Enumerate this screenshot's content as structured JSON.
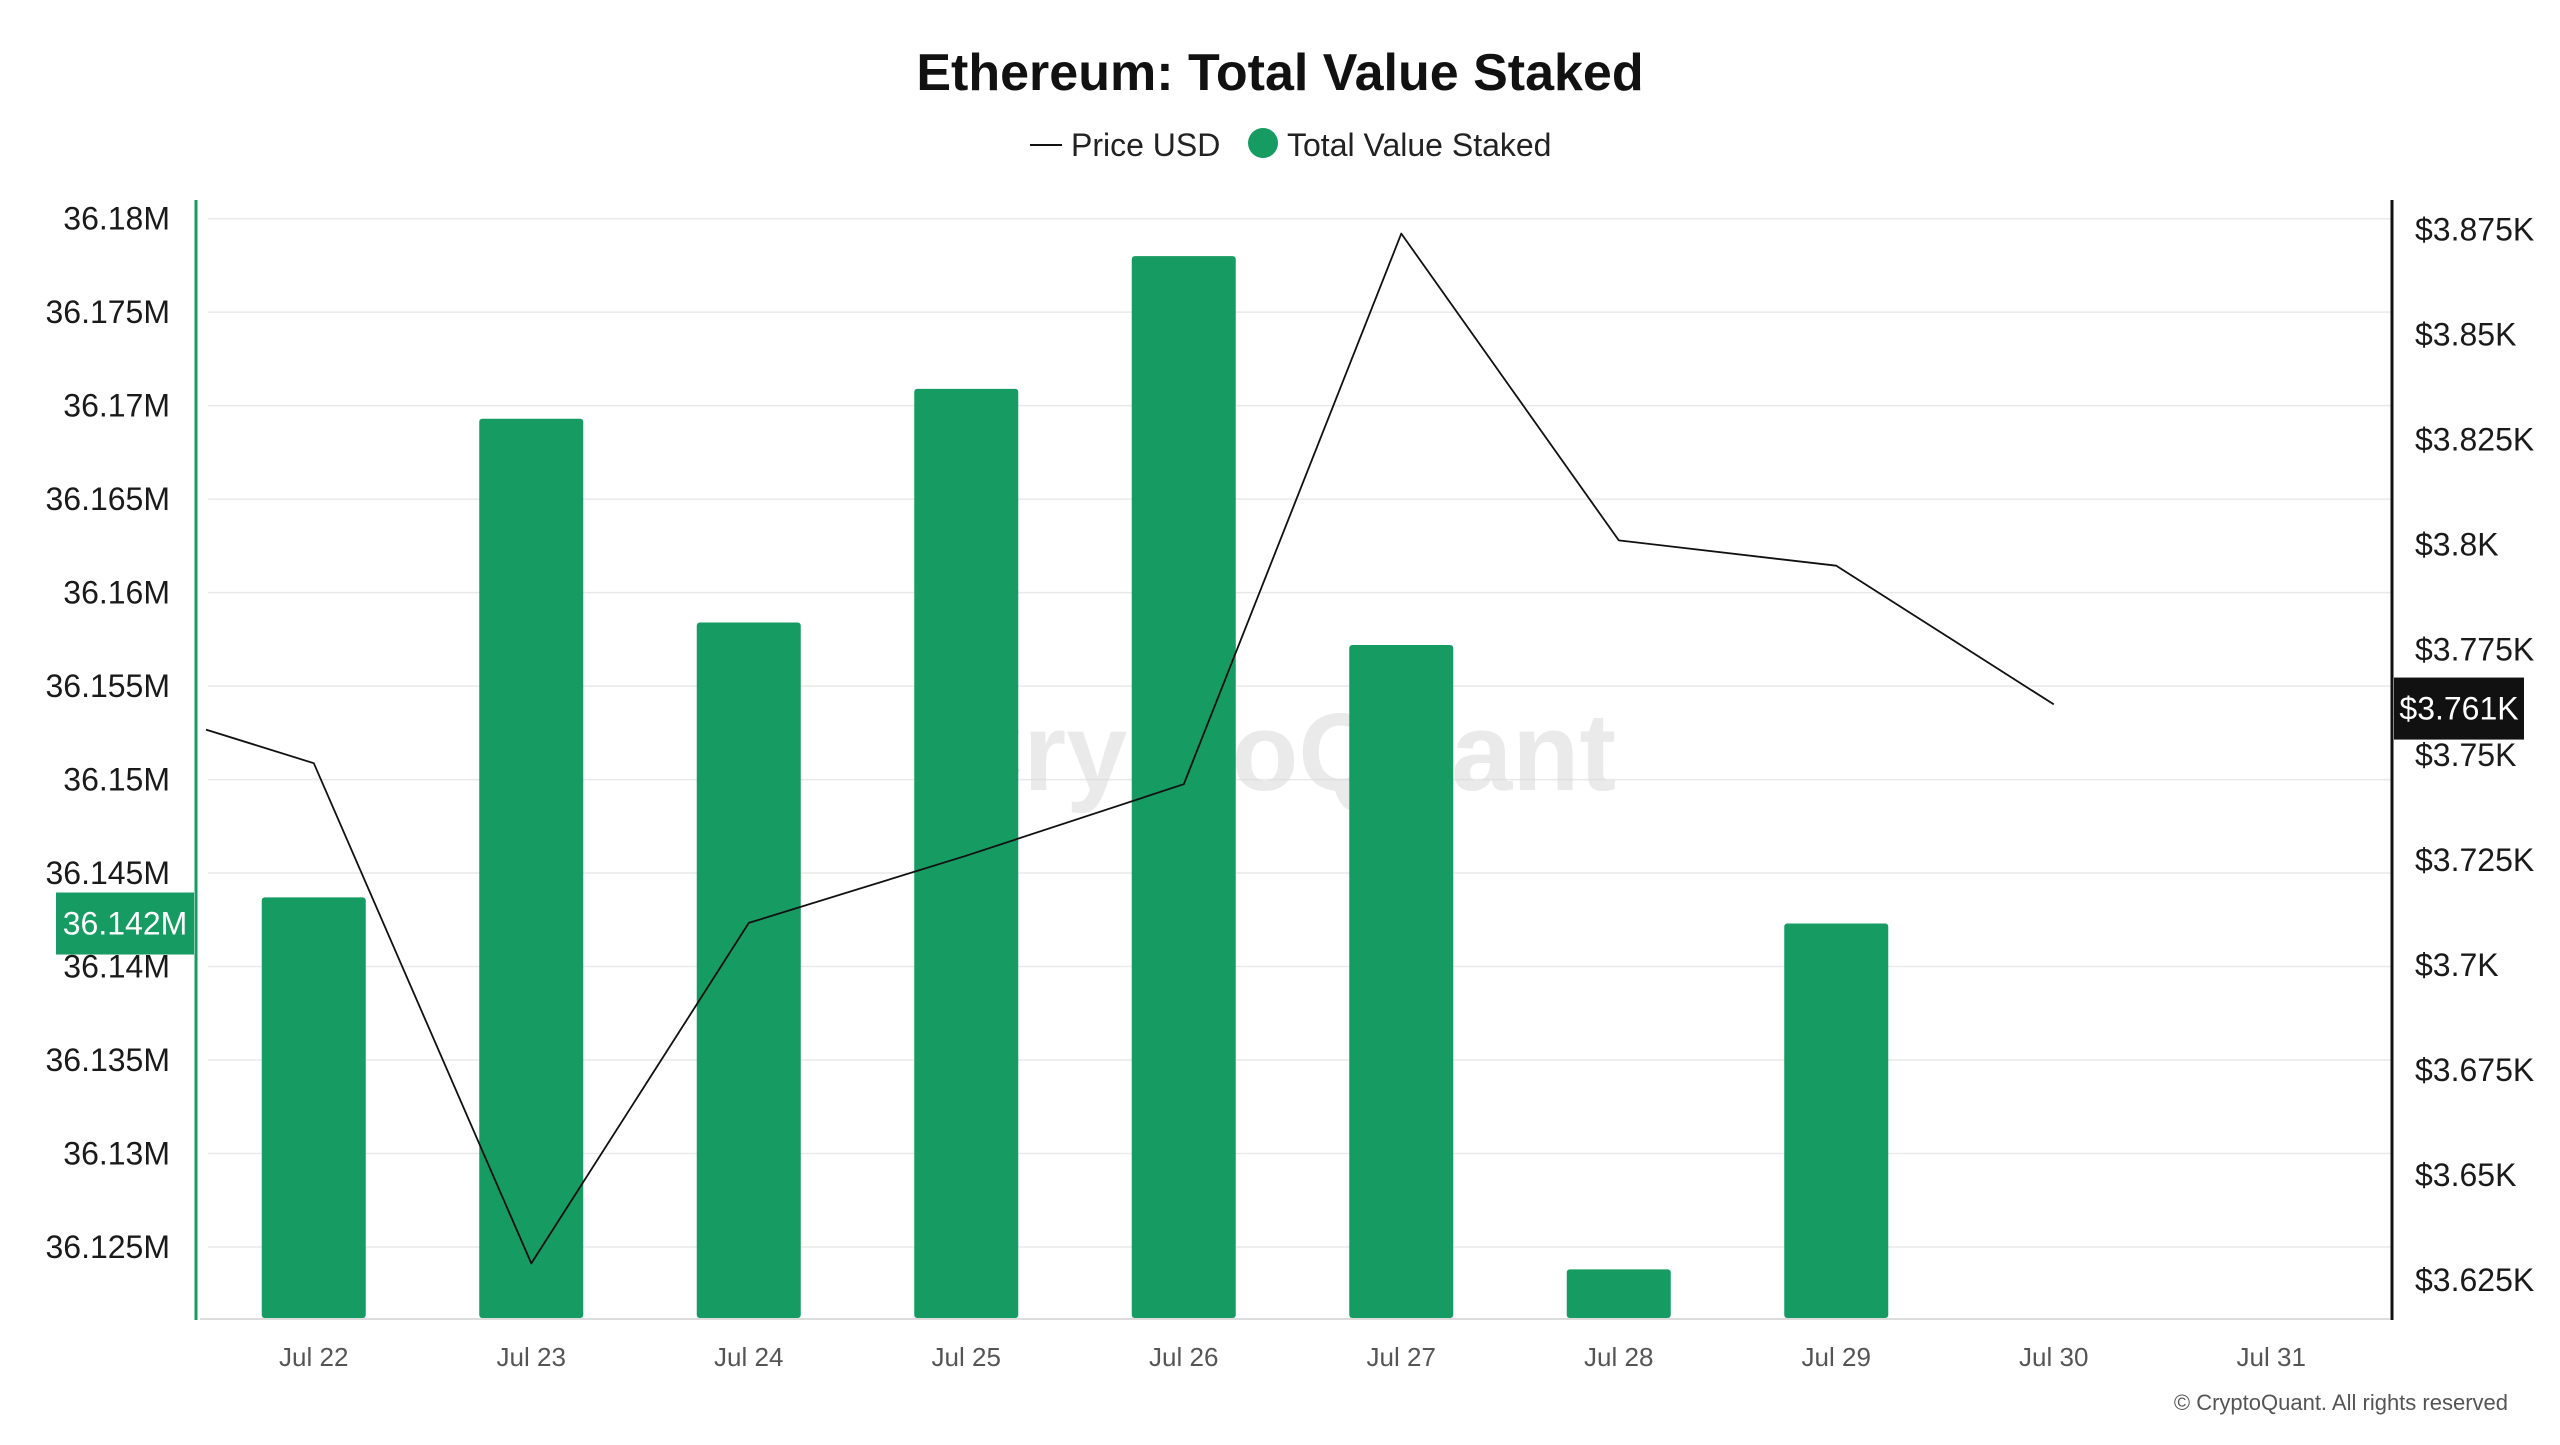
{
  "chart_data": {
    "type": "bar",
    "title": "Ethereum: Total Value Staked",
    "categories": [
      "Jul 22",
      "Jul 23",
      "Jul 24",
      "Jul 25",
      "Jul 26",
      "Jul 27",
      "Jul 28",
      "Jul 29",
      "Jul 30",
      "Jul 31"
    ],
    "series": [
      {
        "name": "Total Value Staked",
        "kind": "bar",
        "axis": "left",
        "color": "#169b62",
        "values": [
          36.1437,
          36.1693,
          36.1584,
          36.1709,
          36.178,
          36.1572,
          36.1238,
          36.1423,
          null,
          null
        ]
      },
      {
        "name": "Price USD",
        "kind": "line",
        "axis": "right",
        "color": "#111111",
        "values": [
          3748,
          3629,
          3710,
          3726,
          3743,
          3874,
          3801,
          3795,
          3762,
          null
        ],
        "start_value": 3756
      }
    ],
    "left_axis": {
      "ticks": [
        36.125,
        36.13,
        36.135,
        36.14,
        36.145,
        36.15,
        36.155,
        36.16,
        36.165,
        36.17,
        36.175,
        36.18
      ],
      "tick_labels": [
        "36.125M",
        "36.13M",
        "36.135M",
        "36.14M",
        "36.145M",
        "36.15M",
        "36.155M",
        "36.16M",
        "36.165M",
        "36.17M",
        "36.175M",
        "36.18M"
      ],
      "ylim": [
        36.1212,
        36.181
      ],
      "current_value": 36.1423,
      "current_label": "36.142M",
      "color": "#169b62"
    },
    "right_axis": {
      "ticks": [
        3625,
        3650,
        3675,
        3700,
        3725,
        3750,
        3775,
        3800,
        3825,
        3850,
        3875
      ],
      "tick_labels": [
        "$3.625K",
        "$3.65K",
        "$3.675K",
        "$3.7K",
        "$3.725K",
        "$3.75K",
        "$3.775K",
        "$3.8K",
        "$3.825K",
        "$3.85K",
        "$3.875K"
      ],
      "ylim": [
        3616,
        3882
      ],
      "current_value": 3761,
      "current_label": "$3.761K",
      "color": "#111111"
    },
    "grid": true,
    "legend": {
      "position": "top-center",
      "items": [
        {
          "label": "Price USD",
          "marker": "line"
        },
        {
          "label": "Total Value Staked",
          "marker": "dot"
        }
      ]
    }
  },
  "watermark": "CryptoQuant",
  "footer": "© CryptoQuant. All rights reserved"
}
